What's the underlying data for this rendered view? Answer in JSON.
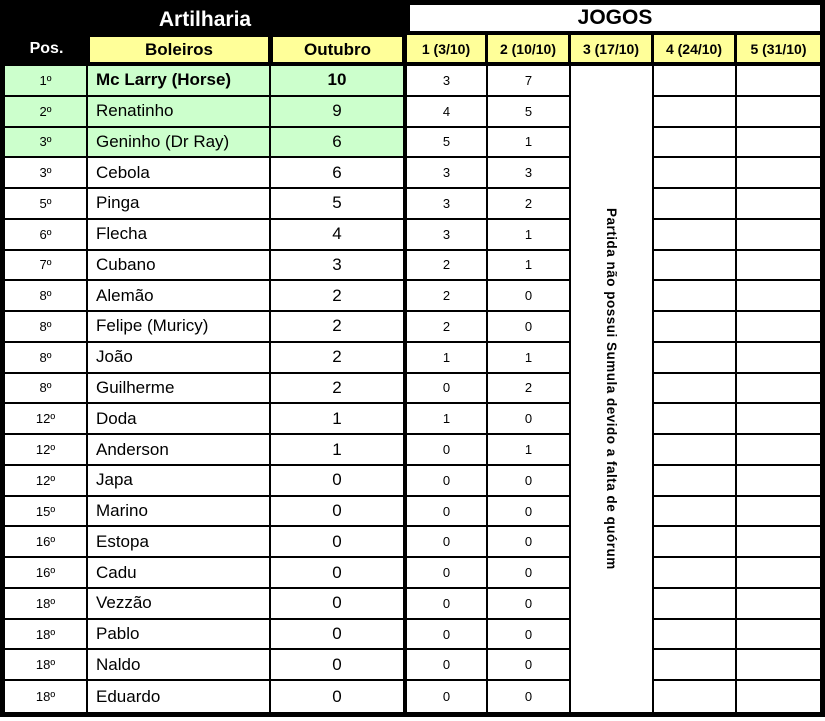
{
  "table": {
    "title_left": "Artilharia",
    "title_right": "JOGOS",
    "headers": {
      "pos": "Pos.",
      "boleiros": "Boleiros",
      "outubro": "Outubro",
      "games": [
        "1 (3/10)",
        "2 (10/10)",
        "3 (17/10)",
        "4 (24/10)",
        "5 (31/10)"
      ]
    },
    "merged_note": "Partida não possui Sumula devido a falta de quórum",
    "colors": {
      "header_yellow": "#ffff99",
      "top3_green": "#ccffcc",
      "title_bg_black": "#000000",
      "cell_white": "#ffffff"
    },
    "rows": [
      {
        "pos": "1º",
        "name": "Mc Larry (Horse)",
        "outubro": "10",
        "g1": "3",
        "g2": "7",
        "top3": true,
        "leader": true
      },
      {
        "pos": "2º",
        "name": "Renatinho",
        "outubro": "9",
        "g1": "4",
        "g2": "5",
        "top3": true,
        "leader": false
      },
      {
        "pos": "3º",
        "name": "Geninho (Dr Ray)",
        "outubro": "6",
        "g1": "5",
        "g2": "1",
        "top3": true,
        "leader": false
      },
      {
        "pos": "3º",
        "name": "Cebola",
        "outubro": "6",
        "g1": "3",
        "g2": "3",
        "top3": false,
        "leader": false
      },
      {
        "pos": "5º",
        "name": "Pinga",
        "outubro": "5",
        "g1": "3",
        "g2": "2",
        "top3": false,
        "leader": false
      },
      {
        "pos": "6º",
        "name": "Flecha",
        "outubro": "4",
        "g1": "3",
        "g2": "1",
        "top3": false,
        "leader": false
      },
      {
        "pos": "7º",
        "name": "Cubano",
        "outubro": "3",
        "g1": "2",
        "g2": "1",
        "top3": false,
        "leader": false
      },
      {
        "pos": "8º",
        "name": "Alemão",
        "outubro": "2",
        "g1": "2",
        "g2": "0",
        "top3": false,
        "leader": false
      },
      {
        "pos": "8º",
        "name": "Felipe (Muricy)",
        "outubro": "2",
        "g1": "2",
        "g2": "0",
        "top3": false,
        "leader": false
      },
      {
        "pos": "8º",
        "name": "João",
        "outubro": "2",
        "g1": "1",
        "g2": "1",
        "top3": false,
        "leader": false
      },
      {
        "pos": "8º",
        "name": "Guilherme",
        "outubro": "2",
        "g1": "0",
        "g2": "2",
        "top3": false,
        "leader": false
      },
      {
        "pos": "12º",
        "name": "Doda",
        "outubro": "1",
        "g1": "1",
        "g2": "0",
        "top3": false,
        "leader": false
      },
      {
        "pos": "12º",
        "name": "Anderson",
        "outubro": "1",
        "g1": "0",
        "g2": "1",
        "top3": false,
        "leader": false
      },
      {
        "pos": "12º",
        "name": "Japa",
        "outubro": "0",
        "g1": "0",
        "g2": "0",
        "top3": false,
        "leader": false
      },
      {
        "pos": "15º",
        "name": "Marino",
        "outubro": "0",
        "g1": "0",
        "g2": "0",
        "top3": false,
        "leader": false
      },
      {
        "pos": "16º",
        "name": "Estopa",
        "outubro": "0",
        "g1": "0",
        "g2": "0",
        "top3": false,
        "leader": false
      },
      {
        "pos": "16º",
        "name": "Cadu",
        "outubro": "0",
        "g1": "0",
        "g2": "0",
        "top3": false,
        "leader": false
      },
      {
        "pos": "18º",
        "name": "Vezzão",
        "outubro": "0",
        "g1": "0",
        "g2": "0",
        "top3": false,
        "leader": false
      },
      {
        "pos": "18º",
        "name": "Pablo",
        "outubro": "0",
        "g1": "0",
        "g2": "0",
        "top3": false,
        "leader": false
      },
      {
        "pos": "18º",
        "name": "Naldo",
        "outubro": "0",
        "g1": "0",
        "g2": "0",
        "top3": false,
        "leader": false
      },
      {
        "pos": "18º",
        "name": "Eduardo",
        "outubro": "0",
        "g1": "0",
        "g2": "0",
        "top3": false,
        "leader": false
      }
    ]
  }
}
